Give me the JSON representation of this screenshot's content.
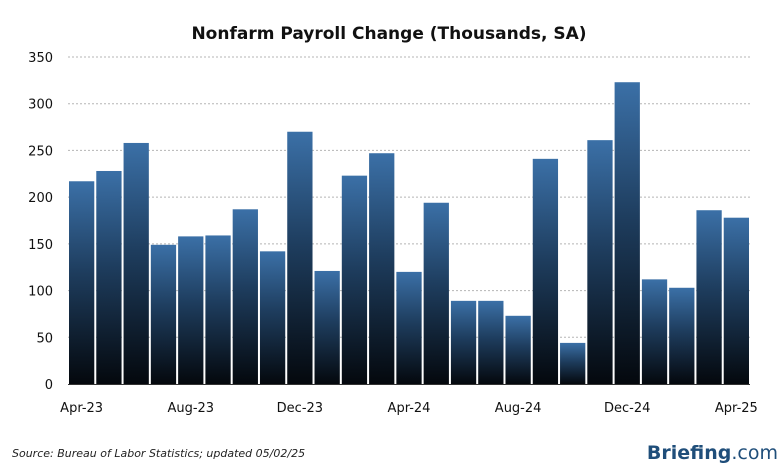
{
  "chart_data": {
    "type": "bar",
    "title": "Nonfarm Payroll Change (Thousands, SA)",
    "xlabel": "",
    "ylabel": "",
    "categories": [
      "Apr-23",
      "May-23",
      "Jun-23",
      "Jul-23",
      "Aug-23",
      "Sep-23",
      "Oct-23",
      "Nov-23",
      "Dec-23",
      "Jan-24",
      "Feb-24",
      "Mar-24",
      "Apr-24",
      "May-24",
      "Jun-24",
      "Jul-24",
      "Aug-24",
      "Sep-24",
      "Oct-24",
      "Nov-24",
      "Dec-24",
      "Jan-25",
      "Feb-25",
      "Mar-25",
      "Apr-25"
    ],
    "values": [
      217,
      228,
      258,
      149,
      158,
      159,
      187,
      142,
      270,
      121,
      223,
      247,
      120,
      194,
      89,
      89,
      73,
      241,
      44,
      261,
      323,
      112,
      103,
      186,
      178
    ],
    "x_tick_labels": [
      "Apr-23",
      "Aug-23",
      "Dec-23",
      "Apr-24",
      "Aug-24",
      "Dec-24",
      "Apr-25"
    ],
    "x_tick_indices": [
      0,
      4,
      8,
      12,
      16,
      20,
      24
    ],
    "ylim": [
      0,
      350
    ],
    "yticks": [
      0,
      50,
      100,
      150,
      200,
      250,
      300,
      350
    ],
    "grid": true,
    "legend": "none",
    "colors": {
      "bar_top": "#3a6ea5",
      "bar_bottom": "#050a10",
      "grid": "#b5b5b5"
    }
  },
  "footer": {
    "source": "Source: Bureau of Labor Statistics; updated 05/02/25",
    "brand_bold": "Briefing",
    "brand_suffix": ".com"
  }
}
